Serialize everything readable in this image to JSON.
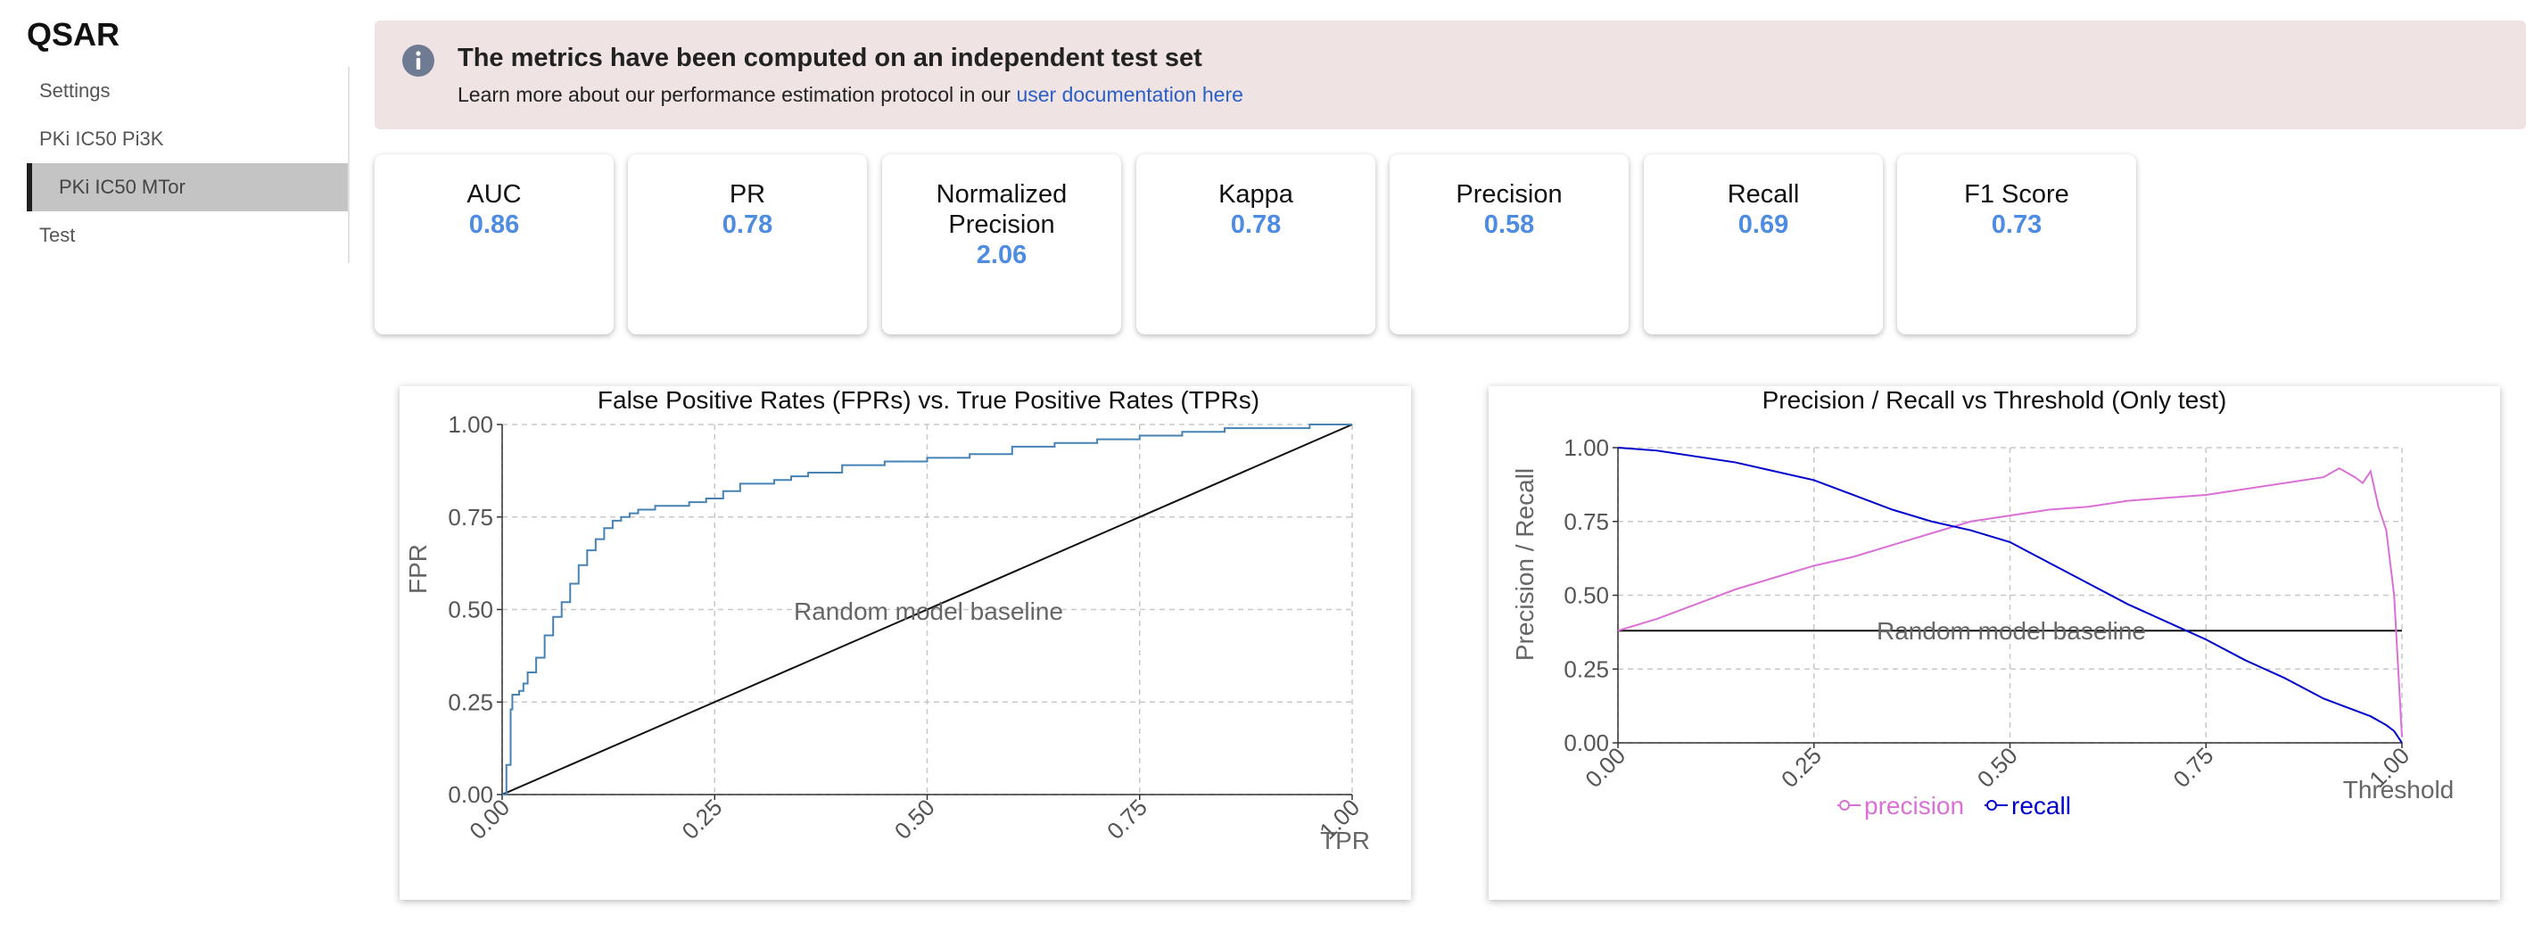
{
  "app": {
    "title": "QSAR"
  },
  "sidebar": {
    "items": [
      {
        "label": "Settings",
        "active": false
      },
      {
        "label": "PKi IC50 Pi3K",
        "active": false
      },
      {
        "label": "PKi IC50 MTor",
        "active": true
      },
      {
        "label": "Test",
        "active": false
      }
    ]
  },
  "banner": {
    "icon": "info-icon",
    "title": "The metrics have been computed on an independent test set",
    "text": "Learn more about our performance estimation protocol in our",
    "link_label": "user documentation here"
  },
  "metrics": [
    {
      "label": "AUC",
      "value": "0.86"
    },
    {
      "label": "PR",
      "value": "0.78"
    },
    {
      "label": "Normalized Precision",
      "value": "2.06"
    },
    {
      "label": "Kappa",
      "value": "0.78"
    },
    {
      "label": "Precision",
      "value": "0.58"
    },
    {
      "label": "Recall",
      "value": "0.69"
    },
    {
      "label": "F1 Score",
      "value": "0.73"
    }
  ],
  "colors": {
    "accent_value": "#4d8ce0",
    "roc_line": "#4682b4",
    "precision": "#da70d6",
    "recall": "#0000cd",
    "banner_bg": "#efe3e4"
  },
  "chart_data": [
    {
      "type": "line",
      "title": "False Positive Rates (FPRs) vs. True Positive Rates (TPRs)",
      "xlabel": "TPR",
      "ylabel": "FPR",
      "xlim": [
        0,
        1
      ],
      "ylim": [
        0,
        1
      ],
      "xticks": [
        "0.00",
        "0.25",
        "0.50",
        "0.75",
        "1.00"
      ],
      "yticks": [
        "0.00",
        "0.25",
        "0.50",
        "0.75",
        "1.00"
      ],
      "grid": true,
      "annotation": "Random model baseline",
      "series": [
        {
          "x": [
            0,
            0.005,
            0.01,
            0.012,
            0.02,
            0.025,
            0.03,
            0.04,
            0.05,
            0.06,
            0.07,
            0.08,
            0.09,
            0.1,
            0.11,
            0.12,
            0.13,
            0.14,
            0.15,
            0.16,
            0.17,
            0.18,
            0.2,
            0.22,
            0.24,
            0.26,
            0.28,
            0.3,
            0.32,
            0.34,
            0.36,
            0.38,
            0.4,
            0.45,
            0.5,
            0.55,
            0.6,
            0.65,
            0.7,
            0.75,
            0.8,
            0.85,
            0.9,
            0.95,
            1.0
          ],
          "y": [
            0,
            0.08,
            0.23,
            0.27,
            0.28,
            0.3,
            0.33,
            0.37,
            0.43,
            0.48,
            0.52,
            0.57,
            0.62,
            0.66,
            0.69,
            0.72,
            0.74,
            0.75,
            0.76,
            0.77,
            0.77,
            0.78,
            0.78,
            0.79,
            0.8,
            0.82,
            0.84,
            0.84,
            0.85,
            0.86,
            0.87,
            0.87,
            0.89,
            0.9,
            0.91,
            0.92,
            0.94,
            0.95,
            0.96,
            0.97,
            0.98,
            0.99,
            0.99,
            1.0,
            1.0
          ]
        },
        {
          "x": [
            0,
            1
          ],
          "y": [
            0,
            1
          ]
        }
      ]
    },
    {
      "type": "line",
      "title": "Precision / Recall vs Threshold (Only test)",
      "xlabel": "Threshold",
      "ylabel": "Precision / Recall",
      "xlim": [
        0,
        1
      ],
      "ylim": [
        0,
        1
      ],
      "xticks": [
        "0.00",
        "0.25",
        "0.50",
        "0.75",
        "1.00"
      ],
      "yticks": [
        "0.00",
        "0.25",
        "0.50",
        "0.75",
        "1.00"
      ],
      "grid": true,
      "annotation": "Random model baseline",
      "baseline": 0.38,
      "legend_position": "bottom",
      "series": [
        {
          "name": "precision",
          "x": [
            0,
            0.05,
            0.1,
            0.15,
            0.2,
            0.25,
            0.3,
            0.35,
            0.4,
            0.45,
            0.5,
            0.55,
            0.6,
            0.65,
            0.7,
            0.75,
            0.8,
            0.85,
            0.9,
            0.92,
            0.94,
            0.95,
            0.96,
            0.97,
            0.98,
            0.99,
            1.0
          ],
          "y": [
            0.38,
            0.42,
            0.47,
            0.52,
            0.56,
            0.6,
            0.63,
            0.67,
            0.71,
            0.75,
            0.77,
            0.79,
            0.8,
            0.82,
            0.83,
            0.84,
            0.86,
            0.88,
            0.9,
            0.93,
            0.9,
            0.88,
            0.92,
            0.8,
            0.72,
            0.5,
            0.02
          ]
        },
        {
          "name": "recall",
          "x": [
            0,
            0.05,
            0.1,
            0.15,
            0.2,
            0.25,
            0.3,
            0.35,
            0.4,
            0.45,
            0.5,
            0.55,
            0.6,
            0.65,
            0.7,
            0.75,
            0.8,
            0.85,
            0.9,
            0.93,
            0.96,
            0.98,
            0.99,
            1.0
          ],
          "y": [
            1.0,
            0.99,
            0.97,
            0.95,
            0.92,
            0.89,
            0.84,
            0.79,
            0.75,
            0.72,
            0.68,
            0.61,
            0.54,
            0.47,
            0.41,
            0.35,
            0.28,
            0.22,
            0.15,
            0.12,
            0.09,
            0.06,
            0.04,
            0.0
          ]
        }
      ]
    }
  ]
}
